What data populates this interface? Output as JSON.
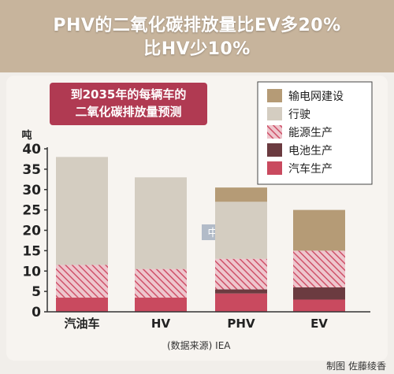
{
  "headline": {
    "line1": "PHV的二氧化碳排放量比EV多20%",
    "line2": "比HV少10%"
  },
  "credit": "制图 佐藤绫香",
  "watermark": "中文网",
  "colors": {
    "headline_bg": "#c7b49c",
    "subtitle_box": "#b03a52",
    "transmission": "#b59b76",
    "driving": "#d4cdc1",
    "energy_production": "#d96b80",
    "battery_production": "#6b3b40",
    "vehicle_production": "#c94a5f"
  },
  "chart_data": {
    "type": "bar",
    "stacked": true,
    "title": "到2035年的每辆车的二氧化碳排放量预测",
    "title_lines": [
      "到2035年的每辆车的",
      "二氧化碳排放量预测"
    ],
    "ylabel": "吨",
    "source": "(数据来源) IEA",
    "categories": [
      "汽油车",
      "HV",
      "PHV",
      "EV"
    ],
    "ylim": [
      0,
      40
    ],
    "yticks": [
      0,
      5,
      10,
      15,
      20,
      25,
      30,
      35,
      40
    ],
    "series": [
      {
        "name": "汽车生产",
        "key": "vehicle_production",
        "values": [
          3.5,
          3.5,
          4.5,
          3
        ]
      },
      {
        "name": "电池生产",
        "key": "battery_production",
        "values": [
          0,
          0,
          1,
          3
        ]
      },
      {
        "name": "能源生产",
        "key": "energy_production",
        "values": [
          8,
          7,
          7.5,
          9
        ]
      },
      {
        "name": "行驶",
        "key": "driving",
        "values": [
          26.5,
          22.5,
          14,
          0
        ]
      },
      {
        "name": "输电网建设",
        "key": "transmission",
        "values": [
          0,
          0,
          3.5,
          10
        ]
      }
    ],
    "legend": {
      "placement": "top-right",
      "order": [
        "输电网建设",
        "行驶",
        "能源生产",
        "电池生产",
        "汽车生产"
      ]
    },
    "grid": false
  }
}
